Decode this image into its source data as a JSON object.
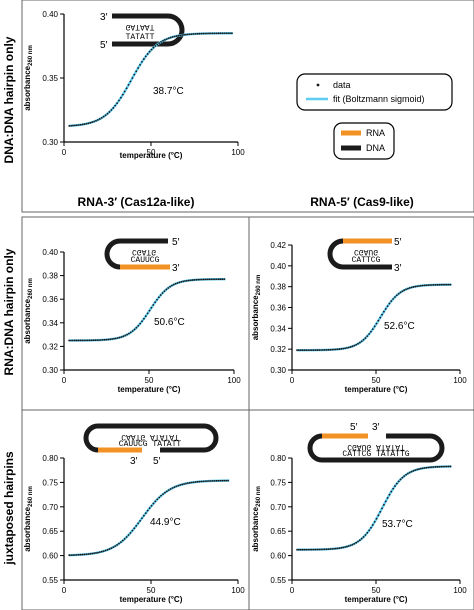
{
  "row_labels": [
    "DNA:DNA hairpin only",
    "RNA:DNA hairpin only",
    "juxtaposed hairpins"
  ],
  "column_labels": [
    "RNA-3′ (Cas12a-like)",
    "RNA-5′ (Cas9-like)"
  ],
  "legend": {
    "data_label": "data",
    "fit_label": "fit (Boltzmann sigmoid)",
    "rna_label": "RNA",
    "dna_label": "DNA",
    "colors": {
      "fit": "#5ecbf0",
      "data": "#1a1a1a",
      "rna": "#f39224",
      "dna": "#1b1b1b"
    }
  },
  "diagrams": {
    "dna_hairpin": {
      "five_prime": "5′",
      "three_prime": "3′",
      "top_seq": "GATAAT",
      "bottom_seq": "TATATT"
    },
    "rna3": {
      "five_prime": "5′",
      "three_prime": "3′",
      "top_seq": "CGATG",
      "bottom_seq": "CAUUCG"
    },
    "rna5": {
      "five_prime": "5′",
      "three_prime": "3′",
      "top_seq": "CGAUG",
      "bottom_seq": "CATTCG"
    },
    "jux_left": {
      "five_prime": "5′",
      "three_prime": "3′",
      "top_seq": "CAATG ATATAT",
      "bottom_seq": "CAUUCG TATATT"
    },
    "jux_right": {
      "five_prime": "5′",
      "three_prime": "3′",
      "top_seq": "CGAUG ATATAT",
      "bottom_seq": "CATTCG TATATTG"
    }
  },
  "chart_data": [
    {
      "id": "dna-dna",
      "type": "line",
      "xlabel": "temperature (°C)",
      "ylabel": "absorbance",
      "ylabel_sub": "260 nm",
      "xlim": [
        0,
        100
      ],
      "xticks": [
        0,
        50,
        100
      ],
      "ylim": [
        0.3,
        0.4
      ],
      "yticks": [
        0.3,
        0.35,
        0.4
      ],
      "annotation": "38.7°C",
      "series": [
        {
          "name": "data",
          "sigmoid": {
            "bottom": 0.312,
            "top": 0.385,
            "tm": 38.7,
            "slope": 7.5
          }
        },
        {
          "name": "fit (Boltzmann sigmoid)",
          "sigmoid": {
            "bottom": 0.312,
            "top": 0.385,
            "tm": 38.7,
            "slope": 7.5
          }
        }
      ],
      "x_range": [
        3,
        97
      ]
    },
    {
      "id": "rna3",
      "type": "line",
      "xlabel": "temperature (°C)",
      "ylabel": "absorbance",
      "ylabel_sub": "260 nm",
      "xlim": [
        0,
        100
      ],
      "xticks": [
        0,
        50,
        100
      ],
      "ylim": [
        0.3,
        0.4
      ],
      "yticks": [
        0.3,
        0.32,
        0.34,
        0.36,
        0.38,
        0.4
      ],
      "annotation": "50.6°C",
      "series": [
        {
          "name": "data",
          "sigmoid": {
            "bottom": 0.325,
            "top": 0.377,
            "tm": 50.6,
            "slope": 6.0
          }
        },
        {
          "name": "fit (Boltzmann sigmoid)",
          "sigmoid": {
            "bottom": 0.325,
            "top": 0.377,
            "tm": 50.6,
            "slope": 6.0
          }
        }
      ],
      "x_range": [
        3,
        95
      ]
    },
    {
      "id": "rna5",
      "type": "line",
      "xlabel": "temperature (°C)",
      "ylabel": "absorbance",
      "ylabel_sub": "260 nm",
      "xlim": [
        0,
        100
      ],
      "xticks": [
        0,
        50,
        100
      ],
      "ylim": [
        0.3,
        0.42
      ],
      "yticks": [
        0.3,
        0.32,
        0.34,
        0.36,
        0.38,
        0.4,
        0.42
      ],
      "annotation": "52.6°C",
      "series": [
        {
          "name": "data",
          "sigmoid": {
            "bottom": 0.319,
            "top": 0.382,
            "tm": 52.6,
            "slope": 6.0
          }
        },
        {
          "name": "fit (Boltzmann sigmoid)",
          "sigmoid": {
            "bottom": 0.319,
            "top": 0.382,
            "tm": 52.6,
            "slope": 6.0
          }
        }
      ],
      "x_range": [
        3,
        95
      ]
    },
    {
      "id": "jux-rna3",
      "type": "line",
      "xlabel": "temperature (°C)",
      "ylabel": "absorbance",
      "ylabel_sub": "260 nm",
      "xlim": [
        0,
        100
      ],
      "xticks": [
        0,
        50,
        100
      ],
      "ylim": [
        0.55,
        0.8
      ],
      "yticks": [
        0.55,
        0.6,
        0.65,
        0.7,
        0.75,
        0.8
      ],
      "annotation": "44.9°C",
      "series": [
        {
          "name": "data",
          "sigmoid": {
            "bottom": 0.6,
            "top": 0.754,
            "tm": 44.9,
            "slope": 8.0
          }
        },
        {
          "name": "fit (Boltzmann sigmoid)",
          "sigmoid": {
            "bottom": 0.6,
            "top": 0.754,
            "tm": 44.9,
            "slope": 8.0
          }
        }
      ],
      "x_range": [
        3,
        95
      ]
    },
    {
      "id": "jux-rna5",
      "type": "line",
      "xlabel": "temperature (°C)",
      "ylabel": "absorbance",
      "ylabel_sub": "260 nm",
      "xlim": [
        0,
        100
      ],
      "xticks": [
        0,
        50,
        100
      ],
      "ylim": [
        0.55,
        0.8
      ],
      "yticks": [
        0.55,
        0.6,
        0.65,
        0.7,
        0.75,
        0.8
      ],
      "annotation": "53.7°C",
      "series": [
        {
          "name": "data",
          "sigmoid": {
            "bottom": 0.612,
            "top": 0.783,
            "tm": 53.7,
            "slope": 6.5
          }
        },
        {
          "name": "fit (Boltzmann sigmoid)",
          "sigmoid": {
            "bottom": 0.612,
            "top": 0.783,
            "tm": 53.7,
            "slope": 6.5
          }
        }
      ],
      "x_range": [
        3,
        95
      ]
    }
  ]
}
